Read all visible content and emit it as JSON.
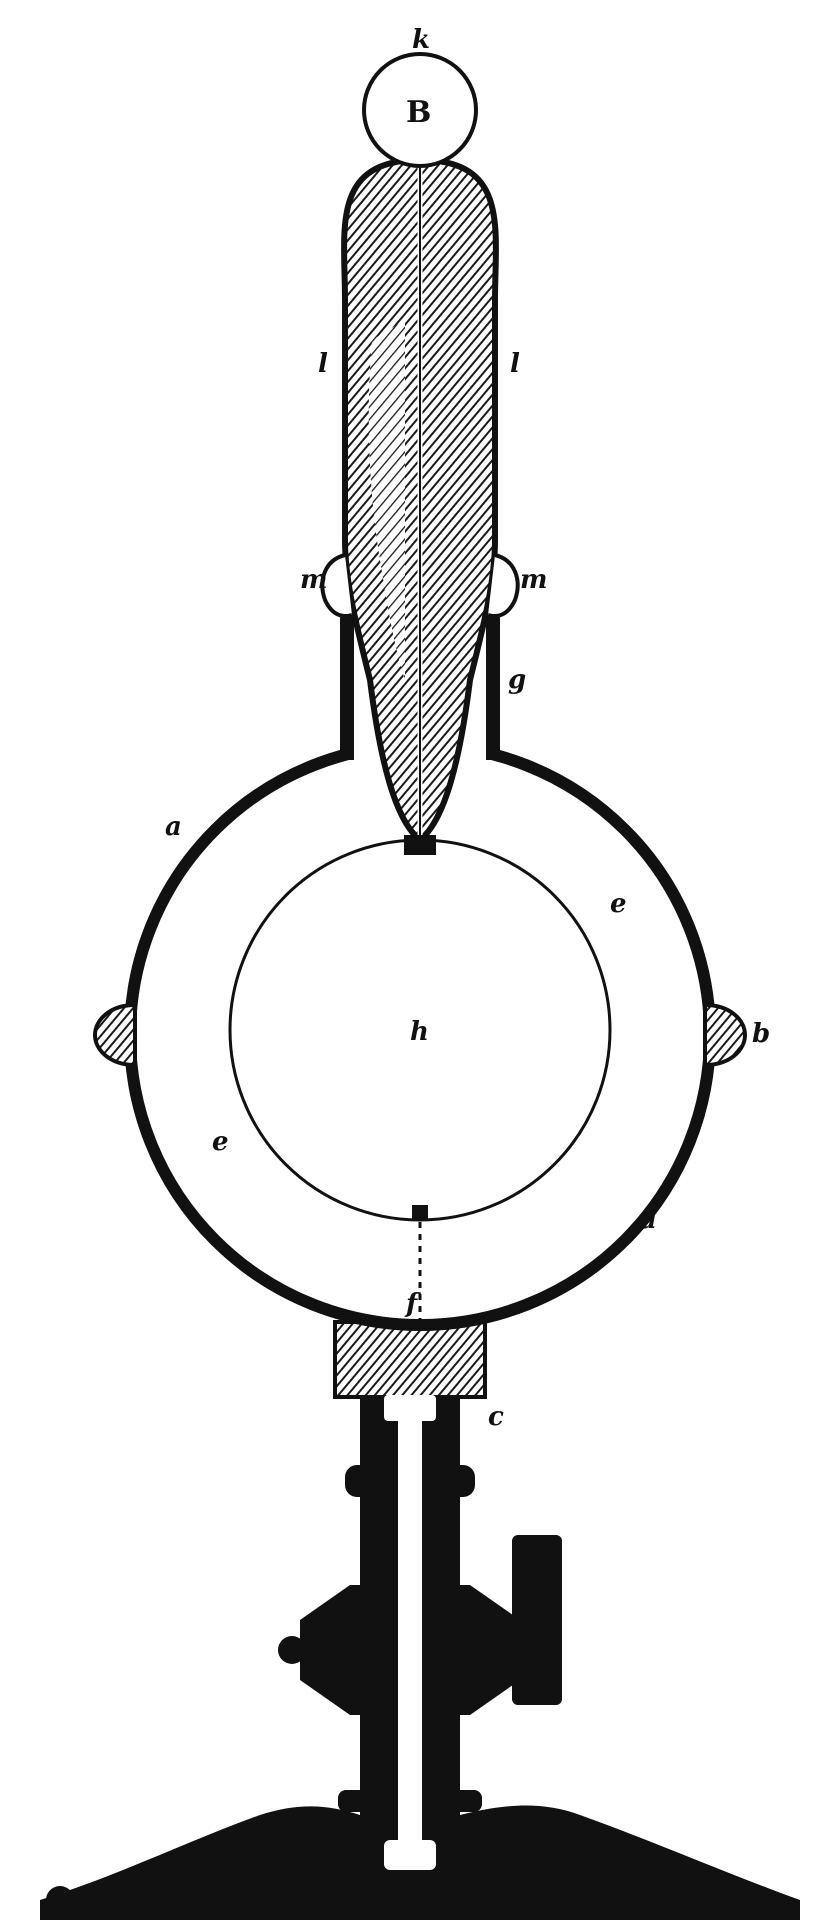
{
  "diagram": {
    "labels": {
      "k": "k",
      "B": "B",
      "l_left": "l",
      "l_right": "l",
      "m_left": "m",
      "m_right": "m",
      "g": "g",
      "a_top": "a",
      "a_bottom": "a",
      "e_right": "e",
      "e_left": "e",
      "h": "h",
      "b": "b",
      "f": "f",
      "c": "c"
    },
    "colors": {
      "ink": "#111111",
      "paper": "#ffffff",
      "hatch": "#2a2a2a"
    }
  }
}
